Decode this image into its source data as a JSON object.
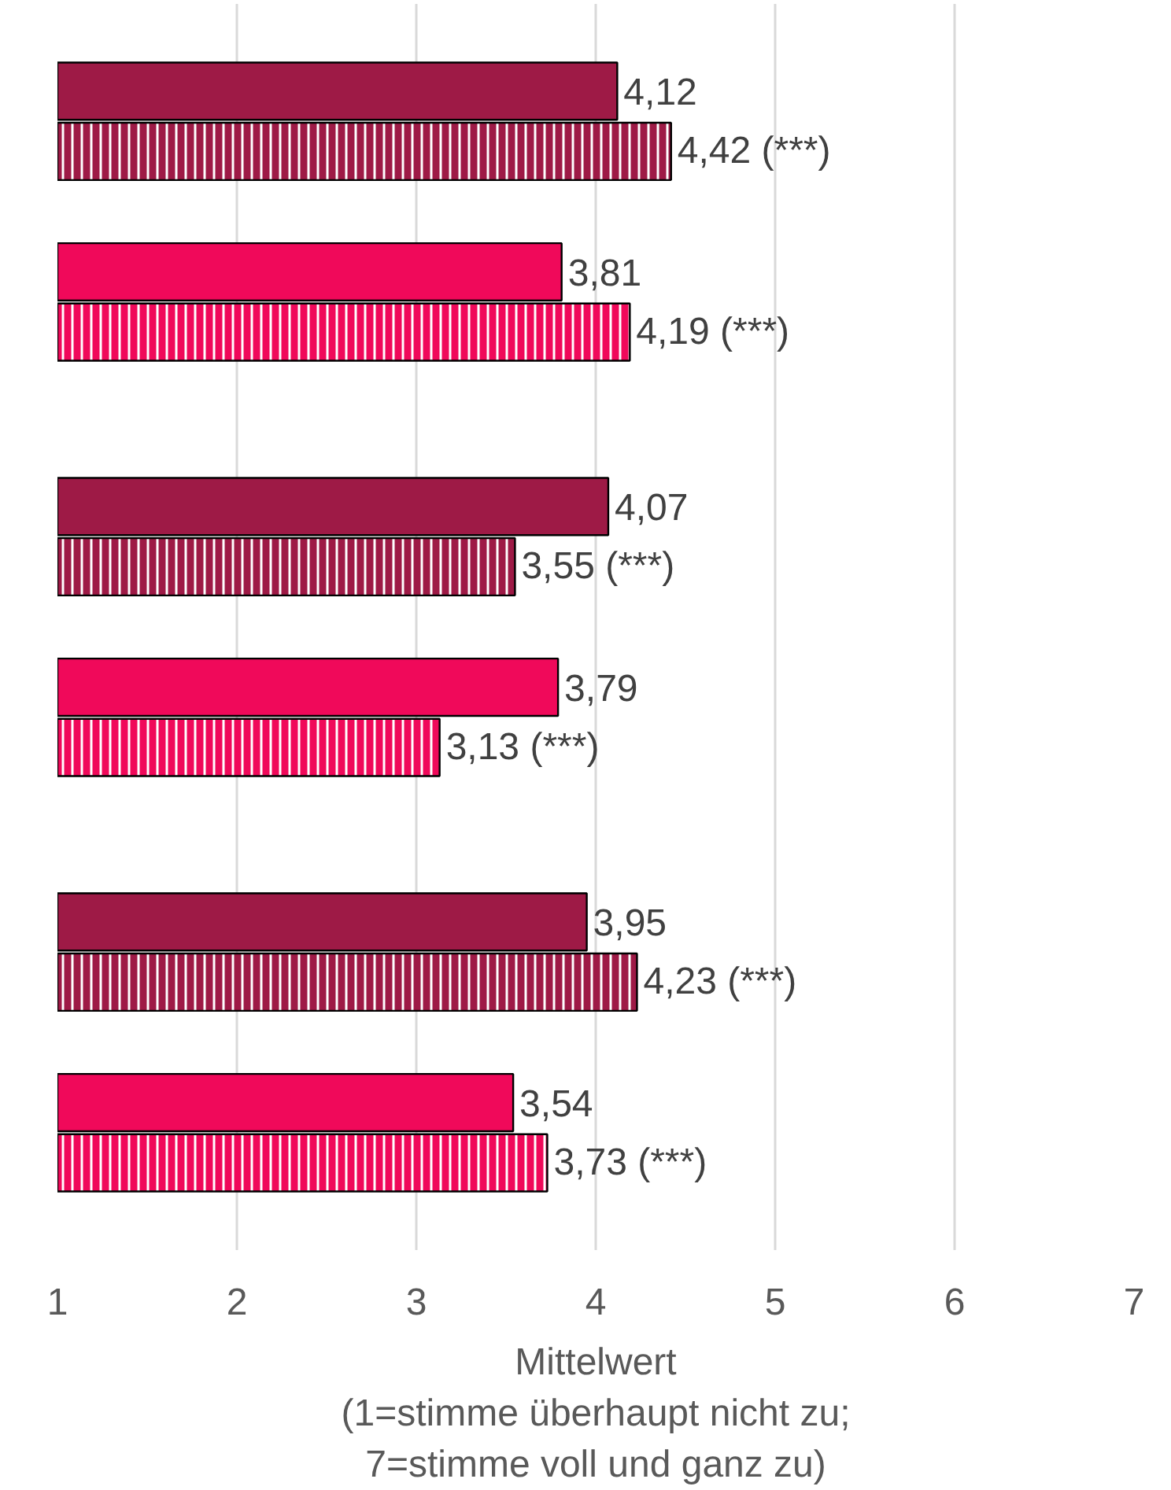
{
  "chart_data": {
    "type": "bar",
    "orientation": "horizontal",
    "categories": [
      null,
      null,
      null
    ],
    "xlabel": "Mittelwert\n(1=stimme überhaupt nicht zu;\n7=stimme voll und ganz zu)",
    "xlim": [
      1,
      7
    ],
    "xticks": [
      1,
      2,
      3,
      4,
      5,
      6,
      7
    ],
    "grid": "x",
    "tick_labels": "x",
    "series": [
      {
        "color": "#9e1a46",
        "values": [
          4.12,
          4.07,
          3.95
        ],
        "value_labels": [
          "4,12",
          "4,07",
          "3,95"
        ]
      },
      {
        "color": "#9e1a46",
        "values": [
          4.42,
          3.55,
          4.23
        ],
        "value_labels": [
          "4,42 (***)",
          "3,55 (***)",
          "4,23 (***)"
        ]
      },
      {
        "color": "#f0095a",
        "values": [
          3.81,
          3.79,
          3.54
        ],
        "value_labels": [
          "3,81",
          "3,79",
          "3,54"
        ]
      },
      {
        "color": "#f0095a",
        "values": [
          4.19,
          3.13,
          3.73
        ],
        "value_labels": [
          "4,19 (***)",
          "3,13 (***)",
          "3,73 (***)"
        ]
      }
    ]
  }
}
